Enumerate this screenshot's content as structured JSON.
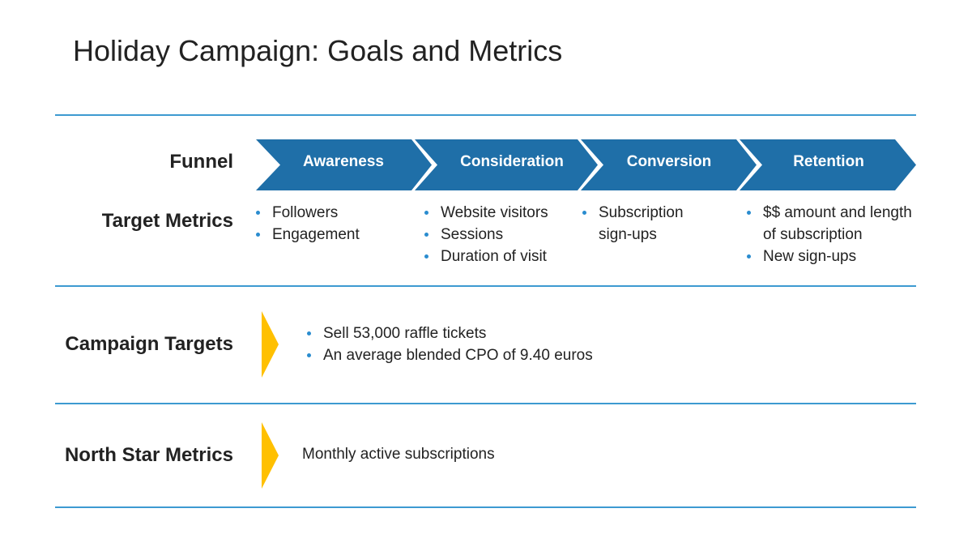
{
  "slide": {
    "title": "Holiday Campaign: Goals and Metrics"
  },
  "colors": {
    "accent_blue": "#1f6fa8",
    "rule_blue": "#3d9ad1",
    "bullet_blue": "#2a8ccf",
    "marker_yellow": "#ffc000"
  },
  "funnel": {
    "label": "Funnel",
    "stages": [
      {
        "label": "Awareness"
      },
      {
        "label": "Consideration"
      },
      {
        "label": "Conversion"
      },
      {
        "label": "Retention"
      }
    ]
  },
  "target_metrics": {
    "label": "Target Metrics",
    "columns": [
      {
        "items": [
          "Followers",
          "Engagement"
        ]
      },
      {
        "items": [
          "Website visitors",
          "Sessions",
          "Duration of visit"
        ]
      },
      {
        "items": [
          "Subscription sign-ups"
        ]
      },
      {
        "items": [
          "$$ amount and length of subscription",
          "New sign-ups"
        ]
      }
    ]
  },
  "campaign_targets": {
    "label": "Campaign Targets",
    "items": [
      "Sell 53,000 raffle tickets",
      "An average blended CPO of 9.40 euros"
    ]
  },
  "north_star": {
    "label": "North Star Metrics",
    "text": "Monthly active subscriptions"
  }
}
